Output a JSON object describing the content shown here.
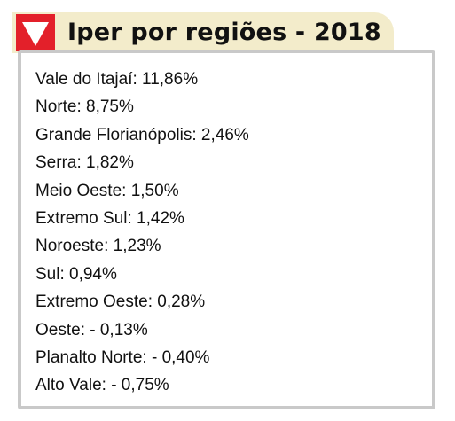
{
  "header": {
    "title": "Iper por regiões - 2018",
    "badge_icon": "down-triangle-icon",
    "badge_color": "#e3202a",
    "background_color": "#f3eccb"
  },
  "regions": [
    "Vale do Itajaí: 11,86%",
    "Norte: 8,75%",
    "Grande Florianópolis: 2,46%",
    "Serra: 1,82%",
    "Meio Oeste: 1,50%",
    "Extremo Sul: 1,42%",
    "Noroeste: 1,23%",
    "Sul: 0,94%",
    "Extremo Oeste: 0,28%",
    "Oeste: - 0,13%",
    "Planalto Norte: - 0,40%",
    "Alto Vale: - 0,75%"
  ]
}
